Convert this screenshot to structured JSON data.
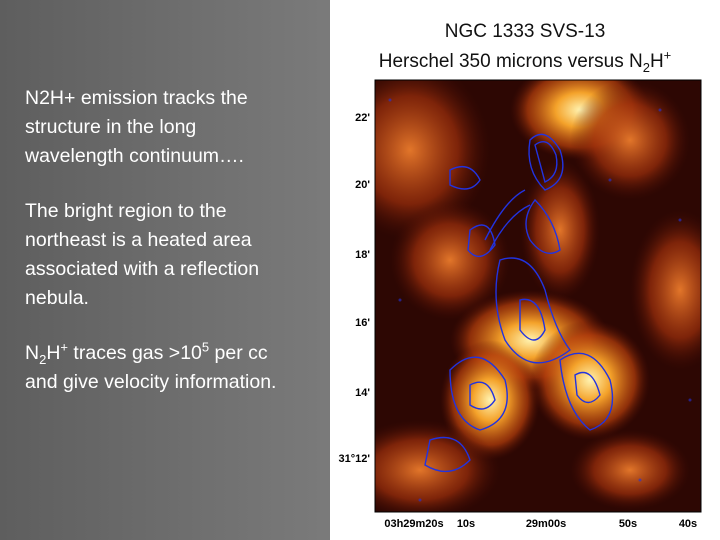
{
  "slide": {
    "paragraphs": [
      [
        "N2H+ emission tracks the",
        "structure in the long",
        "wavelength continuum…."
      ],
      [
        "The bright region to the",
        "northeast is a heated area",
        "associated with a reflection",
        "nebula."
      ],
      [
        [
          "N",
          "2",
          "H",
          "+",
          " traces gas >10",
          "5",
          " per cc"
        ],
        "and give velocity information."
      ]
    ],
    "figure": {
      "title": "NGC 1333 SVS-13",
      "subtitle": [
        "Herschel 350 microns versus N",
        "2",
        "H",
        "+"
      ],
      "dec_labels": [
        "22'",
        "20'",
        "18'",
        "16'",
        "14'",
        "31°12'"
      ],
      "ra_labels": [
        "03h29m20s",
        "10s",
        "29m00s",
        "50s",
        "40s"
      ]
    }
  }
}
